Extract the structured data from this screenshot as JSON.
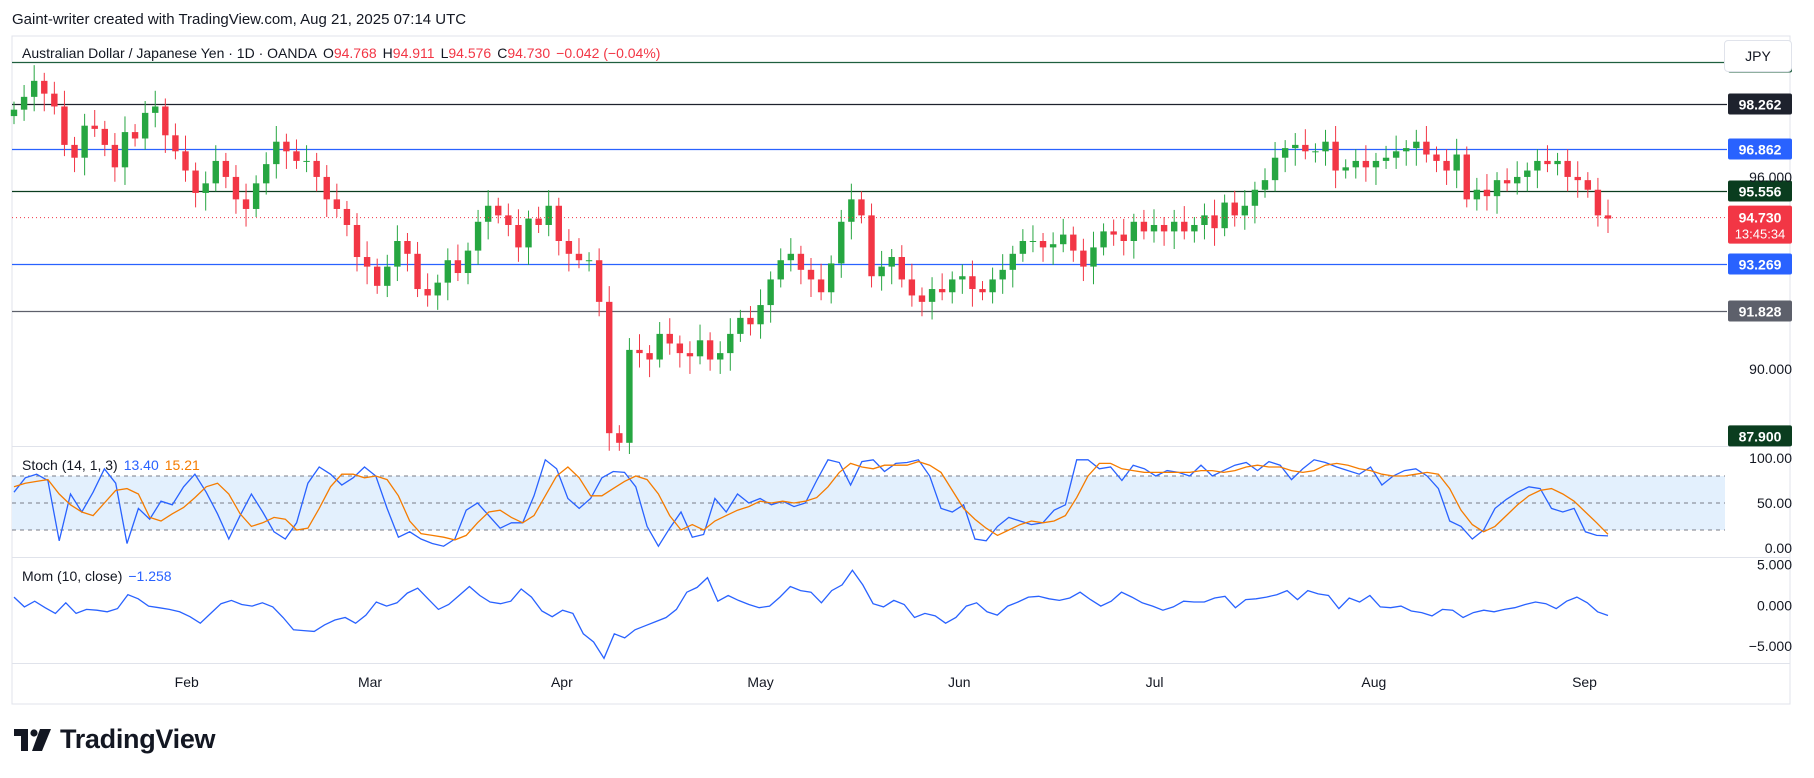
{
  "header": {
    "attribution": "Gaint-writer created with TradingView.com, Aug 21, 2025 07:14 UTC",
    "symbol": "Australian Dollar / Japanese Yen · 1D · OANDA",
    "open_label": "O",
    "open": "94.768",
    "high_label": "H",
    "high": "94.911",
    "low_label": "L",
    "low": "94.576",
    "close_label": "C",
    "close": "94.730",
    "change": "−0.042 (−0.04%)",
    "currency": "JPY"
  },
  "colors": {
    "up": "#26a641",
    "down": "#f23645",
    "stoch_k": "#2962ff",
    "stoch_d": "#f57c00",
    "momentum": "#2962ff",
    "band_fill": "#e3f0fd",
    "grid_border": "#e0e3eb"
  },
  "indicators": {
    "stoch": {
      "label": "Stoch (14, 1, 3)",
      "k": "13.40",
      "d": "15.21"
    },
    "mom": {
      "label": "Mom (10, close)",
      "value": "−1.258"
    }
  },
  "branding": {
    "name": "TradingView"
  },
  "chart_data": [
    {
      "type": "candlestick",
      "title": "Australian Dollar / Japanese Yen · 1D · OANDA",
      "x_ticks": [
        "Feb",
        "Mar",
        "Apr",
        "May",
        "Jun",
        "Jul",
        "Aug",
        "Sep"
      ],
      "y_ticks": [
        "96.000",
        "90.000"
      ],
      "y_range": [
        87.6,
        100.4
      ],
      "horizontal_levels": [
        {
          "value": 99.6,
          "label": "",
          "color": "#1f5f3f"
        },
        {
          "value": 98.262,
          "label": "98.262",
          "color": "#1e222d"
        },
        {
          "value": 96.862,
          "label": "96.862",
          "color": "#2962ff"
        },
        {
          "value": 95.556,
          "label": "95.556",
          "color": "#0a3d1f"
        },
        {
          "value": 93.269,
          "label": "93.269",
          "color": "#2962ff"
        },
        {
          "value": 91.828,
          "label": "91.828",
          "color": "#5d606b"
        }
      ],
      "price_tags": [
        {
          "value": 87.9,
          "label": "87.900",
          "color": "#0a3d1f"
        }
      ],
      "current_price": {
        "value": 94.73,
        "label": "94.730",
        "countdown": "13:45:34"
      },
      "closes": [
        98.1,
        98.5,
        99.0,
        98.6,
        98.2,
        97.0,
        96.6,
        97.6,
        97.5,
        97.0,
        96.3,
        97.4,
        97.2,
        98.0,
        98.2,
        97.3,
        96.8,
        96.2,
        95.5,
        95.8,
        96.5,
        96.0,
        95.3,
        95.0,
        95.8,
        96.4,
        97.1,
        96.8,
        96.5,
        96.5,
        96.0,
        95.3,
        95.0,
        94.5,
        93.5,
        93.2,
        92.6,
        93.2,
        94.0,
        93.6,
        92.5,
        92.3,
        92.7,
        93.4,
        93.0,
        93.7,
        94.6,
        95.1,
        94.8,
        94.5,
        93.8,
        94.7,
        94.5,
        95.1,
        94.0,
        93.6,
        93.4,
        93.4,
        92.1,
        88.0,
        87.7,
        90.6,
        90.5,
        90.3,
        91.1,
        90.8,
        90.5,
        90.4,
        90.9,
        90.3,
        90.5,
        91.1,
        91.6,
        91.4,
        92.0,
        92.8,
        93.4,
        93.6,
        93.1,
        92.8,
        92.4,
        93.3,
        94.6,
        95.3,
        94.8,
        92.9,
        93.2,
        93.5,
        92.8,
        92.3,
        92.1,
        92.5,
        92.4,
        92.8,
        92.9,
        92.5,
        92.4,
        92.8,
        93.1,
        93.6,
        94.0,
        94.0,
        93.8,
        93.9,
        94.2,
        93.7,
        93.2,
        93.8,
        94.3,
        94.2,
        94.0,
        94.6,
        94.3,
        94.5,
        94.3,
        94.6,
        94.3,
        94.5,
        94.8,
        94.4,
        95.2,
        94.8,
        95.1,
        95.6,
        95.9,
        96.6,
        96.9,
        97.0,
        96.8,
        96.8,
        97.1,
        96.2,
        96.3,
        96.5,
        96.3,
        96.5,
        96.6,
        96.8,
        96.9,
        97.1,
        96.7,
        96.5,
        96.2,
        96.7,
        95.3,
        95.6,
        95.4,
        95.9,
        95.8,
        96.0,
        96.2,
        96.5,
        96.4,
        96.5,
        96.0,
        95.9,
        95.6,
        94.8,
        94.7
      ],
      "opens": [
        97.9,
        98.1,
        98.5,
        99.0,
        98.6,
        98.2,
        97.0,
        96.6,
        97.6,
        97.5,
        97.0,
        96.3,
        97.4,
        97.2,
        98.0,
        98.2,
        97.3,
        96.8,
        96.2,
        95.5,
        95.8,
        96.5,
        96.0,
        95.3,
        95.0,
        95.8,
        96.4,
        97.1,
        96.8,
        96.5,
        96.5,
        96.0,
        95.3,
        95.0,
        94.5,
        93.5,
        93.2,
        92.6,
        93.2,
        94.0,
        93.6,
        92.5,
        92.3,
        92.7,
        93.4,
        93.0,
        93.7,
        94.6,
        95.1,
        94.8,
        94.5,
        93.8,
        94.7,
        94.5,
        95.1,
        94.0,
        93.6,
        93.4,
        93.4,
        92.1,
        88.0,
        87.7,
        90.6,
        90.5,
        90.3,
        91.1,
        90.8,
        90.5,
        90.4,
        90.9,
        90.3,
        90.5,
        91.1,
        91.6,
        91.4,
        92.0,
        92.8,
        93.4,
        93.6,
        93.1,
        92.8,
        92.4,
        93.3,
        94.6,
        95.3,
        94.8,
        92.9,
        93.2,
        93.5,
        92.8,
        92.3,
        92.1,
        92.5,
        92.4,
        92.8,
        92.9,
        92.5,
        92.4,
        92.8,
        93.1,
        93.6,
        94.0,
        94.0,
        93.8,
        93.9,
        94.2,
        93.7,
        93.2,
        93.8,
        94.3,
        94.2,
        94.0,
        94.6,
        94.3,
        94.5,
        94.3,
        94.6,
        94.3,
        94.5,
        94.8,
        94.4,
        95.2,
        94.8,
        95.1,
        95.6,
        95.9,
        96.6,
        96.9,
        97.0,
        96.8,
        96.8,
        97.1,
        96.2,
        96.3,
        96.5,
        96.3,
        96.5,
        96.6,
        96.8,
        96.9,
        97.1,
        96.7,
        96.5,
        96.2,
        96.7,
        95.3,
        95.6,
        95.4,
        95.9,
        95.8,
        96.0,
        96.2,
        96.5,
        96.4,
        96.5,
        96.0,
        95.9,
        95.6,
        94.8
      ]
    },
    {
      "type": "line",
      "title": "Stoch (14, 1, 3)",
      "y_ticks": [
        "100.00",
        "50.00",
        "0.00"
      ],
      "y_range": [
        0,
        100
      ],
      "band": [
        20,
        80
      ],
      "series": [
        {
          "name": "13.40",
          "values": [
            62,
            78,
            82,
            75,
            8,
            60,
            40,
            62,
            88,
            72,
            5,
            44,
            32,
            52,
            48,
            68,
            82,
            62,
            38,
            10,
            36,
            60,
            40,
            18,
            10,
            28,
            72,
            90,
            82,
            70,
            78,
            90,
            80,
            44,
            12,
            18,
            10,
            5,
            2,
            10,
            42,
            50,
            36,
            22,
            28,
            28,
            58,
            98,
            88,
            55,
            44,
            55,
            78,
            85,
            84,
            68,
            24,
            2,
            22,
            40,
            12,
            15,
            55,
            40,
            60,
            50,
            55,
            48,
            52,
            46,
            50,
            75,
            98,
            95,
            70,
            96,
            98,
            85,
            94,
            95,
            98,
            80,
            44,
            40,
            48,
            10,
            8,
            24,
            34,
            30,
            26,
            28,
            42,
            48,
            98,
            98,
            88,
            90,
            75,
            92,
            88,
            80,
            86,
            84,
            80,
            92,
            80,
            86,
            92,
            95,
            86,
            96,
            92,
            76,
            88,
            98,
            95,
            90,
            86,
            82,
            90,
            70,
            80,
            86,
            88,
            80,
            66,
            30,
            24,
            10,
            20,
            44,
            54,
            62,
            68,
            66,
            44,
            40,
            44,
            18,
            14,
            13.4
          ]
        },
        {
          "name": "15.21",
          "values": [
            68,
            72,
            74,
            76,
            60,
            48,
            40,
            36,
            50,
            64,
            66,
            60,
            34,
            30,
            38,
            45,
            56,
            68,
            72,
            60,
            38,
            24,
            28,
            34,
            32,
            20,
            22,
            44,
            68,
            82,
            82,
            78,
            80,
            76,
            58,
            30,
            16,
            14,
            12,
            9,
            14,
            28,
            40,
            42,
            34,
            28,
            36,
            58,
            80,
            90,
            78,
            58,
            58,
            66,
            74,
            80,
            76,
            60,
            36,
            20,
            26,
            20,
            30,
            36,
            42,
            46,
            52,
            50,
            52,
            50,
            52,
            56,
            68,
            84,
            94,
            90,
            88,
            92,
            92,
            92,
            96,
            92,
            84,
            64,
            44,
            32,
            22,
            14,
            20,
            26,
            30,
            28,
            30,
            36,
            56,
            80,
            94,
            94,
            88,
            86,
            84,
            84,
            84,
            84,
            84,
            86,
            86,
            84,
            86,
            90,
            92,
            90,
            90,
            86,
            84,
            86,
            92,
            94,
            92,
            88,
            86,
            82,
            80,
            80,
            82,
            84,
            82,
            66,
            42,
            26,
            18,
            24,
            36,
            48,
            58,
            64,
            66,
            60,
            52,
            40,
            28,
            15.21
          ]
        }
      ]
    },
    {
      "type": "line",
      "title": "Mom (10, close)",
      "y_ticks": [
        "5.000",
        "0.000",
        "−5.000"
      ],
      "y_range": [
        -7.2,
        5.8
      ],
      "series": [
        {
          "name": "−1.258",
          "values": [
            1.0,
            -0.2,
            0.5,
            -0.3,
            -1.0,
            0.3,
            -1.0,
            -0.5,
            -0.6,
            -0.8,
            -0.4,
            1.3,
            0.8,
            -0.1,
            -0.3,
            -0.5,
            -0.8,
            -1.4,
            -2.2,
            -1.0,
            0.2,
            0.6,
            0.1,
            -0.1,
            0.3,
            -0.2,
            -1.5,
            -3.0,
            -3.1,
            -3.2,
            -2.4,
            -1.8,
            -1.5,
            -2.2,
            -1.2,
            0.4,
            -0.1,
            0.3,
            1.5,
            2.1,
            0.8,
            -0.5,
            0.1,
            1.2,
            2.3,
            1.2,
            0.4,
            0.2,
            0.5,
            2.0,
            1.0,
            -0.7,
            -1.4,
            -0.6,
            -1.0,
            -3.5,
            -4.5,
            -6.5,
            -3.5,
            -4.0,
            -3.0,
            -2.5,
            -2.0,
            -1.5,
            -0.5,
            1.6,
            2.2,
            3.4,
            0.5,
            1.2,
            0.6,
            0.1,
            -0.3,
            -0.1,
            1.0,
            2.3,
            1.8,
            1.6,
            0.3,
            1.8,
            2.5,
            4.3,
            2.5,
            0.2,
            -0.2,
            0.6,
            0.1,
            -1.5,
            -1.0,
            -1.3,
            -2.2,
            -1.5,
            -0.1,
            0.3,
            -0.8,
            -1.2,
            -0.1,
            0.4,
            1.0,
            1.1,
            0.8,
            0.6,
            0.9,
            1.6,
            0.7,
            -0.1,
            0.5,
            1.6,
            1.0,
            0.3,
            -0.1,
            -0.6,
            -0.2,
            0.5,
            0.4,
            0.4,
            0.9,
            1.1,
            -0.3,
            0.7,
            0.8,
            1.0,
            1.3,
            1.8,
            0.7,
            1.8,
            1.4,
            1.2,
            -0.4,
            0.9,
            0.4,
            1.2,
            -0.2,
            -0.3,
            -0.1,
            -0.7,
            -0.9,
            -1.3,
            -0.5,
            -0.6,
            -1.5,
            -0.9,
            -0.6,
            -0.8,
            -0.5,
            -0.3,
            0.1,
            0.4,
            0.2,
            -0.4,
            0.5,
            1.0,
            0.3,
            -0.8,
            -1.258
          ]
        }
      ]
    }
  ]
}
